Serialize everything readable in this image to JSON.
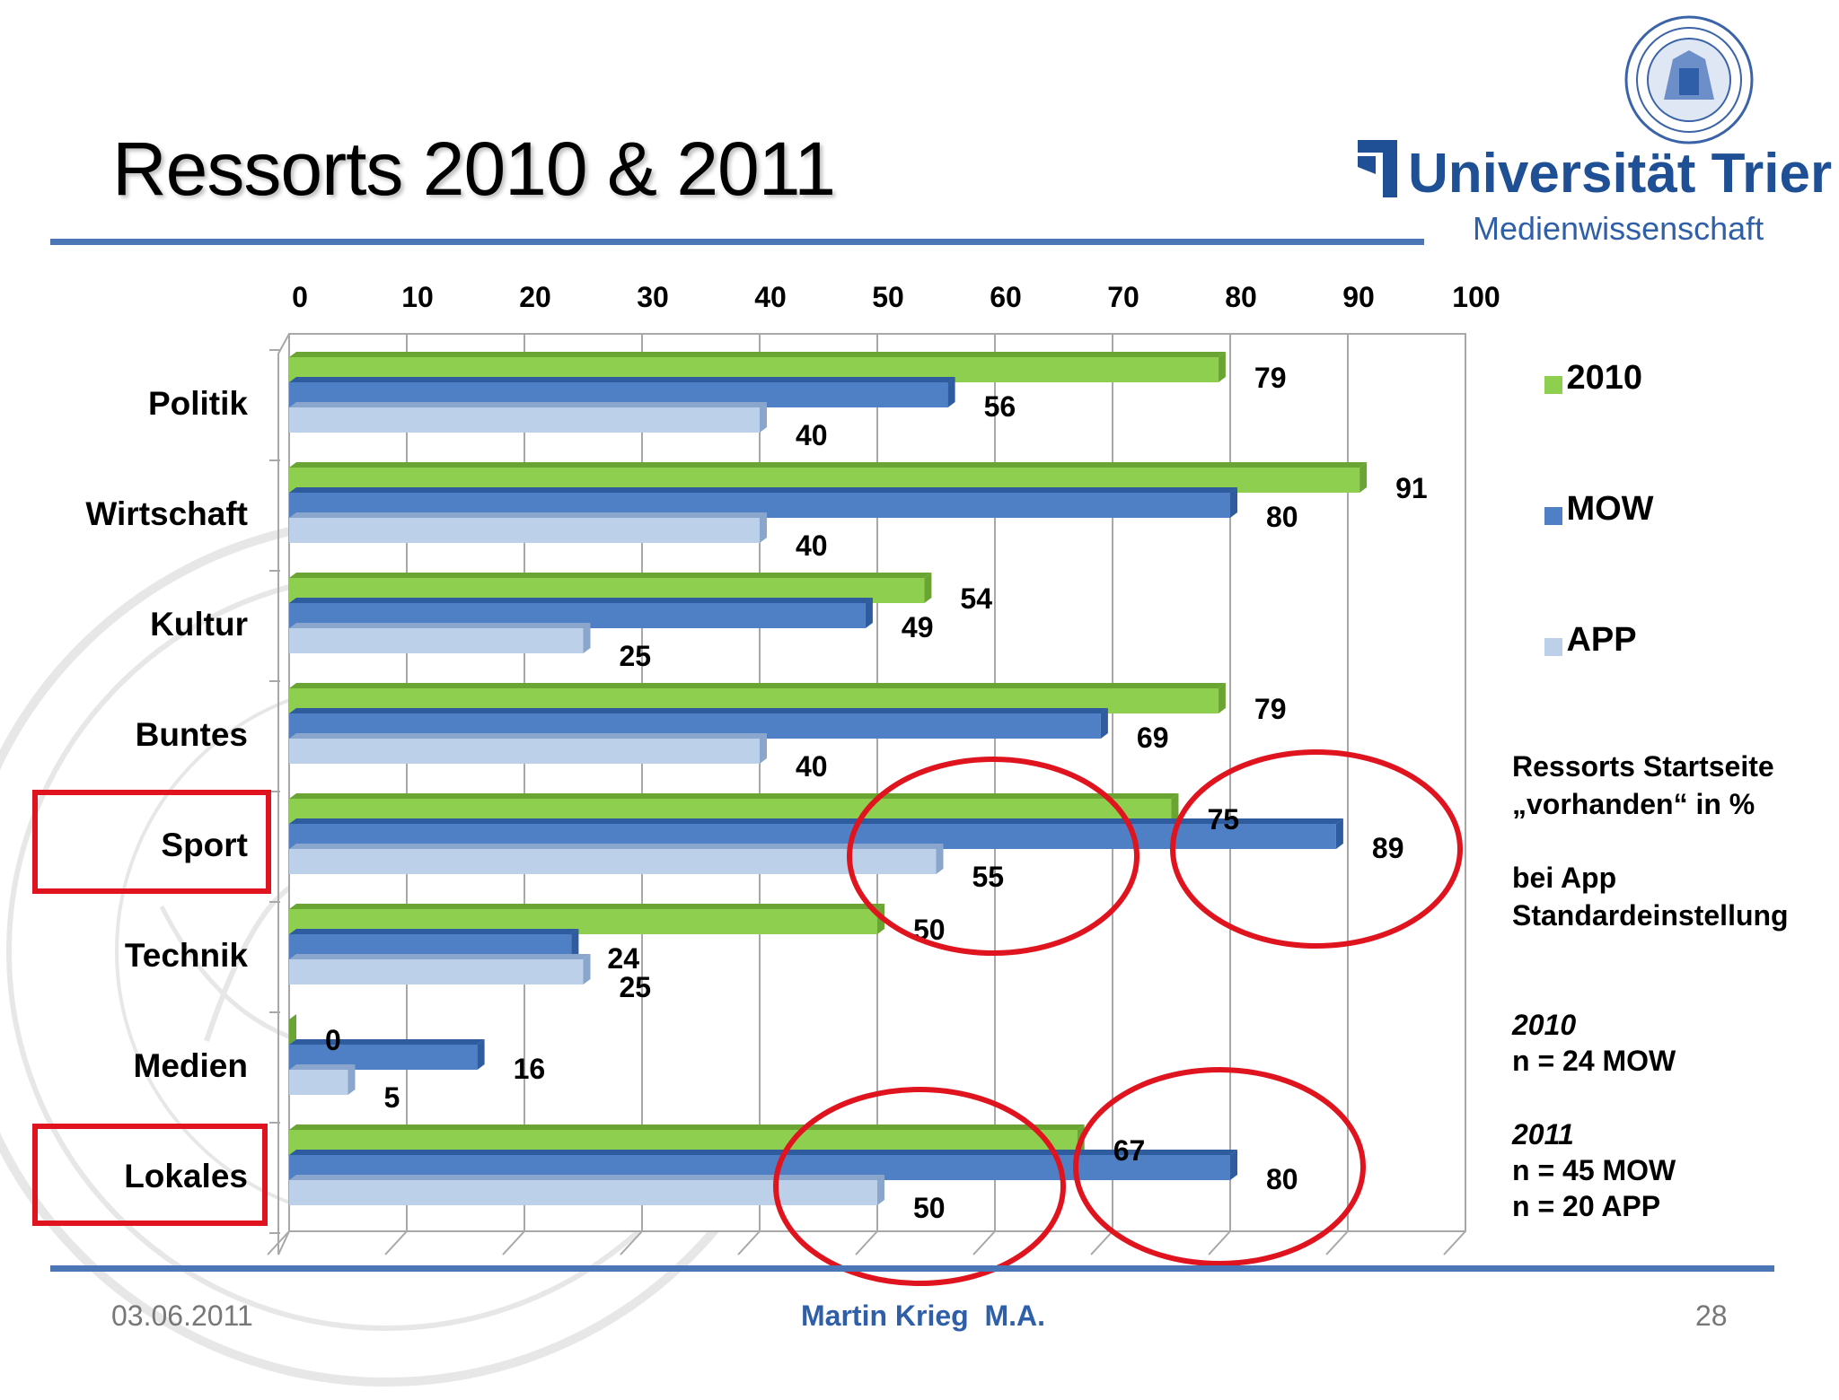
{
  "slide": {
    "title": "Ressorts 2010 & 2011",
    "footer_date": "03.06.2011",
    "footer_author": "Martin Krieg  M.A.",
    "page_number": "28"
  },
  "logo": {
    "wordmark": "Universität Trier",
    "department": "Medienwissenschaft"
  },
  "colors": {
    "s2010": "#8fcf4f",
    "mow": "#4f7fc4",
    "app": "#bcd0ea",
    "accent_line": "#4a76b8",
    "highlight": "#e0141e"
  },
  "chart_data": {
    "type": "bar",
    "orientation": "horizontal",
    "title": "",
    "xlabel": "",
    "ylabel": "",
    "xlim": [
      0,
      100
    ],
    "ticks": [
      "0",
      "10",
      "20",
      "30",
      "40",
      "50",
      "60",
      "70",
      "80",
      "90",
      "100"
    ],
    "categories": [
      "Politik",
      "Wirtschaft",
      "Kultur",
      "Buntes",
      "Sport",
      "Technik",
      "Medien",
      "Lokales"
    ],
    "series": [
      {
        "name": "2010",
        "values": [
          79,
          91,
          54,
          79,
          75,
          50,
          0,
          67
        ]
      },
      {
        "name": "MOW",
        "values": [
          56,
          80,
          49,
          69,
          89,
          24,
          16,
          80
        ]
      },
      {
        "name": "APP",
        "values": [
          40,
          40,
          25,
          40,
          55,
          25,
          5,
          50
        ]
      }
    ],
    "legend_position": "right",
    "highlighted_categories": [
      "Sport",
      "Lokales"
    ]
  },
  "notes": {
    "line1": "Ressorts Startseite",
    "line2": "„vorhanden“ in %",
    "line3": "bei App",
    "line4": "Standardeinstellung",
    "y2010": "2010",
    "n2010": "n = 24 MOW",
    "y2011": "2011",
    "n2011_mow": "n = 45 MOW",
    "n2011_app": "n = 20 APP"
  }
}
